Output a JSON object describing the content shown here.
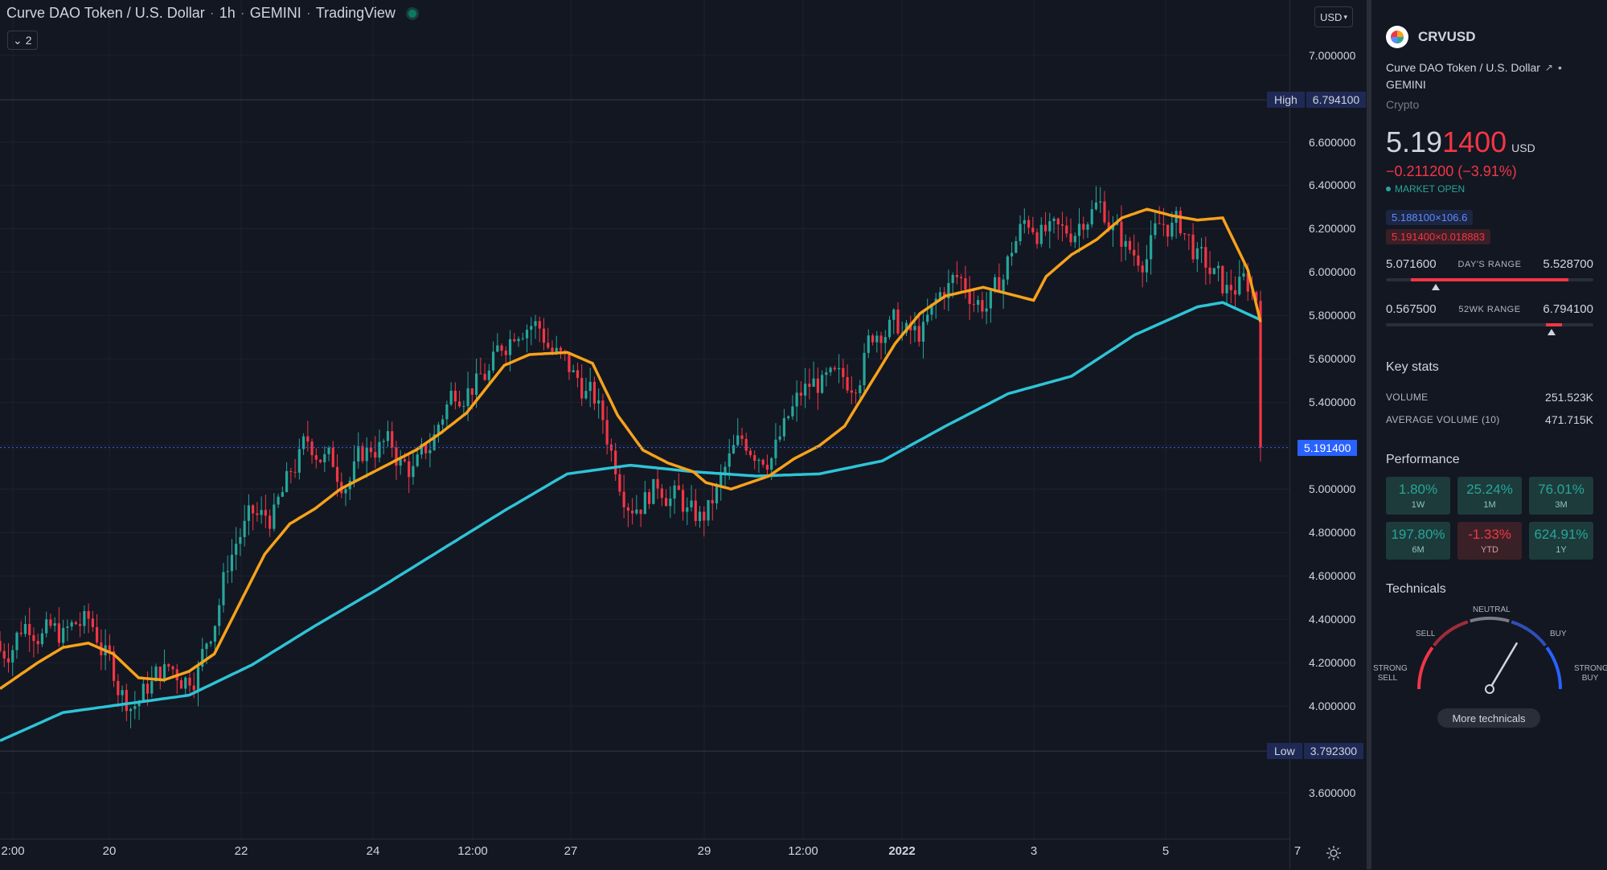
{
  "header": {
    "symbol_title": "Curve DAO Token / U.S. Dollar",
    "interval": "1h",
    "exchange": "GEMINI",
    "provider": "TradingView",
    "collapse_count": "2",
    "currency": "USD"
  },
  "price_axis": {
    "labels": [
      "7.000000",
      "6.600000",
      "6.400000",
      "6.200000",
      "6.000000",
      "5.800000",
      "5.600000",
      "5.400000",
      "5.000000",
      "4.800000",
      "4.600000",
      "4.400000",
      "4.200000",
      "4.000000",
      "3.600000"
    ],
    "high_label": "High",
    "high_value": "6.794100",
    "low_label": "Low",
    "low_value": "3.792300",
    "last_value": "5.191400"
  },
  "time_axis": {
    "labels": [
      "2:00",
      "20",
      "22",
      "24",
      "12:00",
      "27",
      "29",
      "12:00",
      "2022",
      "3",
      "5",
      "7"
    ]
  },
  "side": {
    "symbol": "CRVUSD",
    "full_name": "Curve DAO Token / U.S. Dollar",
    "exchange": "GEMINI",
    "type": "Crypto",
    "price_main": "5.19",
    "price_tail": "1400",
    "price_currency": "USD",
    "change": "−0.211200 (−3.91%)",
    "market_status": "MARKET OPEN",
    "bid": "5.188100×106.6",
    "ask": "5.191400×0.018883",
    "days_range": {
      "low": "5.071600",
      "name": "DAY'S RANGE",
      "high": "5.528700",
      "fill_from": 0.12,
      "fill_to": 0.88,
      "marker": 0.24
    },
    "wk52_range": {
      "low": "0.567500",
      "name": "52WK RANGE",
      "high": "6.794100",
      "fill_from": 0.77,
      "fill_to": 0.85,
      "marker": 0.8
    },
    "key_stats_title": "Key stats",
    "volume_label": "VOLUME",
    "volume_value": "251.523K",
    "avg_volume_label": "AVERAGE VOLUME (10)",
    "avg_volume_value": "471.715K",
    "performance_title": "Performance",
    "performance": [
      {
        "value": "1.80%",
        "period": "1W",
        "sign": "pos"
      },
      {
        "value": "25.24%",
        "period": "1M",
        "sign": "pos"
      },
      {
        "value": "76.01%",
        "period": "3M",
        "sign": "pos"
      },
      {
        "value": "197.80%",
        "period": "6M",
        "sign": "pos"
      },
      {
        "value": "-1.33%",
        "period": "YTD",
        "sign": "neg"
      },
      {
        "value": "624.91%",
        "period": "1Y",
        "sign": "pos"
      }
    ],
    "technicals_title": "Technicals",
    "gauge": {
      "neutral": "NEUTRAL",
      "sell": "SELL",
      "buy": "BUY",
      "strong_sell": "STRONG SELL",
      "strong_buy": "STRONG BUY",
      "needle": 0.67
    },
    "more_technicals": "More technicals"
  },
  "colors": {
    "up": "#26a69a",
    "down": "#f23645",
    "ma_fast": "#f7a21b",
    "ma_slow": "#2ec4d6",
    "background": "#131722"
  },
  "chart_data": {
    "type": "candlestick",
    "series": [
      {
        "name": "",
        "values": []
      }
    ],
    "ma_fast": {
      "x_fraction": [
        0,
        0.03,
        0.05,
        0.07,
        0.09,
        0.11,
        0.13,
        0.15,
        0.17,
        0.19,
        0.21,
        0.23,
        0.25,
        0.27,
        0.29,
        0.31,
        0.33,
        0.35,
        0.37,
        0.4,
        0.42,
        0.45,
        0.47,
        0.49,
        0.51,
        0.53,
        0.55,
        0.56,
        0.58,
        0.61,
        0.63,
        0.65,
        0.67,
        0.69,
        0.71,
        0.73,
        0.75,
        0.78,
        0.8,
        0.82,
        0.83,
        0.85,
        0.87,
        0.89,
        0.91,
        0.93,
        0.95,
        0.97,
        0.99,
        1.0
      ],
      "y": [
        4.08,
        4.2,
        4.27,
        4.29,
        4.24,
        4.13,
        4.12,
        4.16,
        4.24,
        4.47,
        4.7,
        4.84,
        4.91,
        5.0,
        5.06,
        5.12,
        5.18,
        5.26,
        5.35,
        5.57,
        5.62,
        5.63,
        5.58,
        5.34,
        5.18,
        5.12,
        5.08,
        5.03,
        5.0,
        5.06,
        5.14,
        5.2,
        5.29,
        5.48,
        5.67,
        5.81,
        5.89,
        5.93,
        5.9,
        5.87,
        5.98,
        6.08,
        6.15,
        6.25,
        6.29,
        6.26,
        6.24,
        6.25,
        6.01,
        5.77
      ]
    },
    "ma_slow": {
      "x_fraction": [
        0,
        0.05,
        0.1,
        0.15,
        0.2,
        0.25,
        0.3,
        0.35,
        0.4,
        0.45,
        0.5,
        0.55,
        0.6,
        0.65,
        0.7,
        0.75,
        0.8,
        0.85,
        0.9,
        0.95,
        0.97,
        1.0
      ],
      "y": [
        3.84,
        3.97,
        4.01,
        4.05,
        4.19,
        4.37,
        4.54,
        4.72,
        4.9,
        5.07,
        5.11,
        5.08,
        5.06,
        5.07,
        5.13,
        5.29,
        5.44,
        5.52,
        5.71,
        5.84,
        5.86,
        5.78
      ]
    },
    "ylim": [
      3.5,
      7.08
    ],
    "high": 6.7941,
    "low": 3.7923,
    "last": 5.1914
  }
}
